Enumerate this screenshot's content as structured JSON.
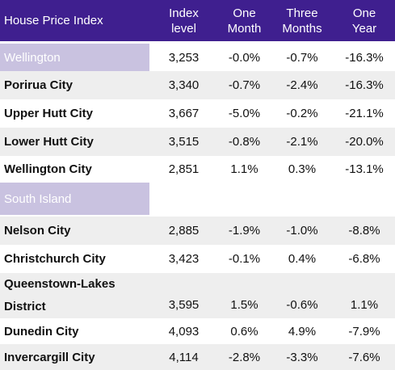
{
  "header": {
    "title": "House Price Index",
    "col1_line1": "Index",
    "col1_line2": "level",
    "col2_line1": "One",
    "col2_line2": "Month",
    "col3_line1": "Three",
    "col3_line2": "Months",
    "col4_line1": "One",
    "col4_line2": "Year"
  },
  "regions": {
    "wellington": {
      "name": "Wellington",
      "index": "3,253",
      "one_month": "-0.0%",
      "three_months": "-0.7%",
      "one_year": "-16.3%"
    },
    "south_island": {
      "name": "South Island"
    }
  },
  "rows": [
    {
      "name": "Porirua City",
      "index": "3,340",
      "one_month": "-0.7%",
      "three_months": "-2.4%",
      "one_year": "-16.3%"
    },
    {
      "name": "Upper Hutt City",
      "index": "3,667",
      "one_month": "-5.0%",
      "three_months": "-0.2%",
      "one_year": "-21.1%"
    },
    {
      "name": "Lower Hutt City",
      "index": "3,515",
      "one_month": "-0.8%",
      "three_months": "-2.1%",
      "one_year": "-20.0%"
    },
    {
      "name": "Wellington City",
      "index": "2,851",
      "one_month": "1.1%",
      "three_months": "0.3%",
      "one_year": "-13.1%"
    },
    {
      "name": "Nelson City",
      "index": "2,885",
      "one_month": "-1.9%",
      "three_months": "-1.0%",
      "one_year": "-8.8%"
    },
    {
      "name": "Christchurch City",
      "index": "3,423",
      "one_month": "-0.1%",
      "three_months": "0.4%",
      "one_year": "-6.8%"
    },
    {
      "name_line1": "Queenstown-Lakes",
      "name_line2": "District",
      "index": "3,595",
      "one_month": "1.5%",
      "three_months": "-0.6%",
      "one_year": "1.1%"
    },
    {
      "name": "Dunedin City",
      "index": "4,093",
      "one_month": "0.6%",
      "three_months": "4.9%",
      "one_year": "-7.9%"
    },
    {
      "name": "Invercargill City",
      "index": "4,114",
      "one_month": "-2.8%",
      "three_months": "-3.3%",
      "one_year": "-7.6%"
    }
  ],
  "colors": {
    "header_bg": "#3f1f8f",
    "region_bg": "#c9c2e0",
    "row_shade": "#eeeeee"
  }
}
